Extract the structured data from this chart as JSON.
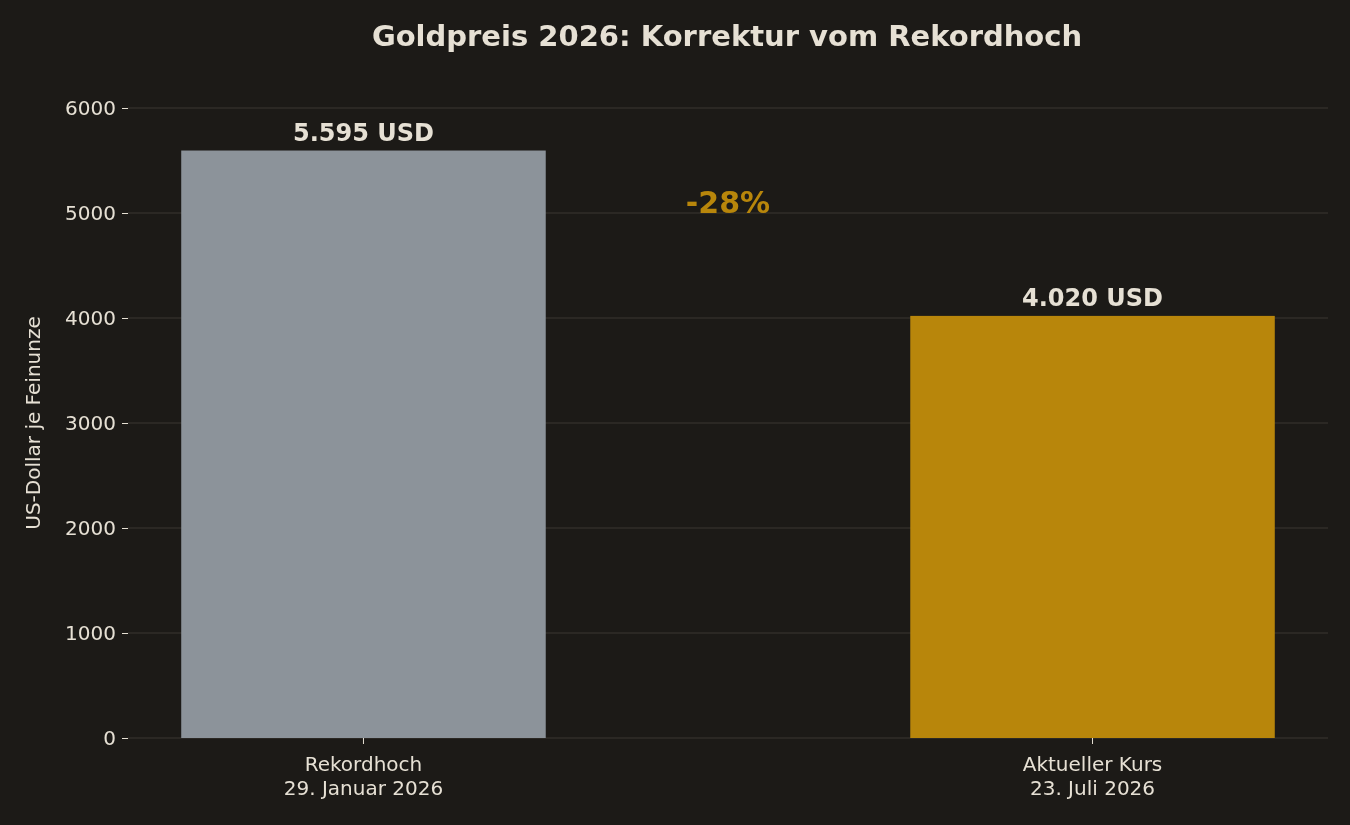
{
  "chart_data": {
    "type": "bar",
    "title": "Goldpreis 2026: Korrektur vom Rekordhoch",
    "ylabel": "US-Dollar je Feinunze",
    "categories": [
      "Rekordhoch\n29. Januar 2026",
      "Aktueller Kurs\n23. Juli 2026"
    ],
    "values": [
      5595,
      4020
    ],
    "colors": [
      "#8c939a",
      "#b8860b"
    ],
    "value_labels": [
      "5.595 USD",
      "4.020 USD"
    ],
    "annotations": [
      "-28%"
    ],
    "ylim": [
      0,
      6000
    ],
    "yticks": [
      0,
      1000,
      2000,
      3000,
      4000,
      5000,
      6000
    ],
    "grid": "y"
  }
}
